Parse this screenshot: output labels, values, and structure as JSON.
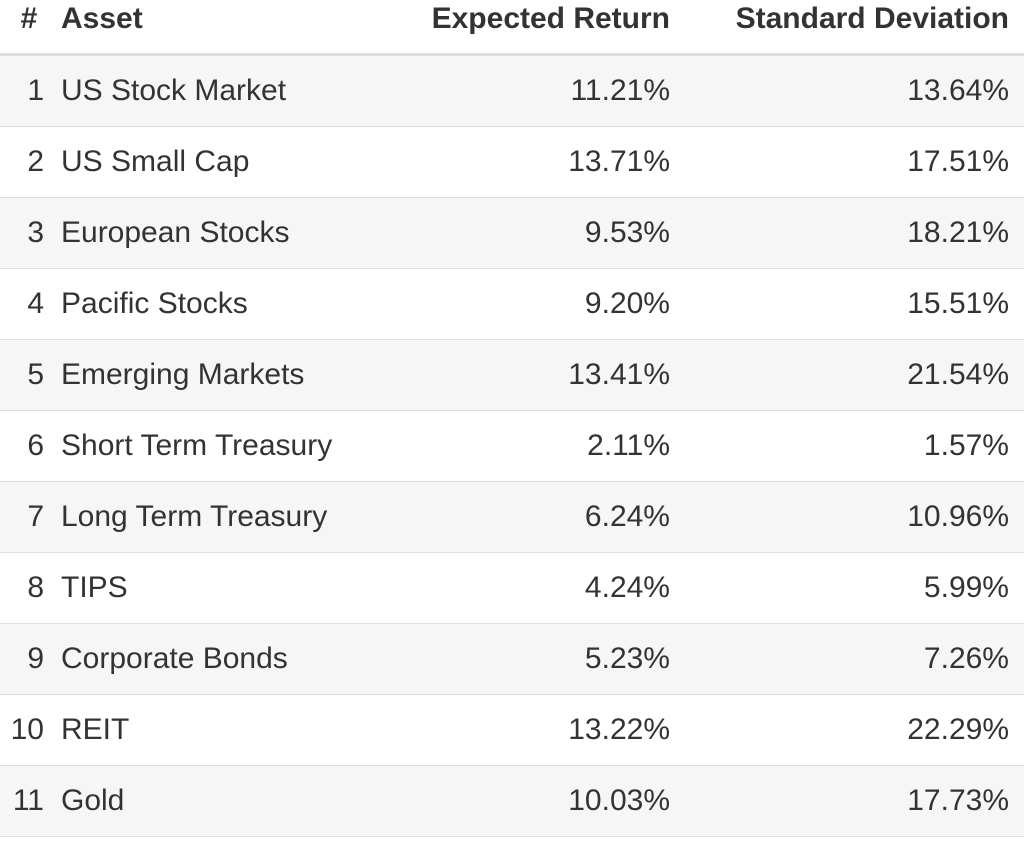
{
  "table": {
    "headers": {
      "num": "#",
      "asset": "Asset",
      "expected_return": "Expected Return",
      "std_dev": "Standard Deviation"
    },
    "rows": [
      {
        "num": "1",
        "asset": "US Stock Market",
        "expected_return": "11.21%",
        "std_dev": "13.64%"
      },
      {
        "num": "2",
        "asset": "US Small Cap",
        "expected_return": "13.71%",
        "std_dev": "17.51%"
      },
      {
        "num": "3",
        "asset": "European Stocks",
        "expected_return": "9.53%",
        "std_dev": "18.21%"
      },
      {
        "num": "4",
        "asset": "Pacific Stocks",
        "expected_return": "9.20%",
        "std_dev": "15.51%"
      },
      {
        "num": "5",
        "asset": "Emerging Markets",
        "expected_return": "13.41%",
        "std_dev": "21.54%"
      },
      {
        "num": "6",
        "asset": "Short Term Treasury",
        "expected_return": "2.11%",
        "std_dev": "1.57%"
      },
      {
        "num": "7",
        "asset": "Long Term Treasury",
        "expected_return": "6.24%",
        "std_dev": "10.96%"
      },
      {
        "num": "8",
        "asset": "TIPS",
        "expected_return": "4.24%",
        "std_dev": "5.99%"
      },
      {
        "num": "9",
        "asset": "Corporate Bonds",
        "expected_return": "5.23%",
        "std_dev": "7.26%"
      },
      {
        "num": "10",
        "asset": "REIT",
        "expected_return": "13.22%",
        "std_dev": "22.29%"
      },
      {
        "num": "11",
        "asset": "Gold",
        "expected_return": "10.03%",
        "std_dev": "17.73%"
      }
    ]
  }
}
